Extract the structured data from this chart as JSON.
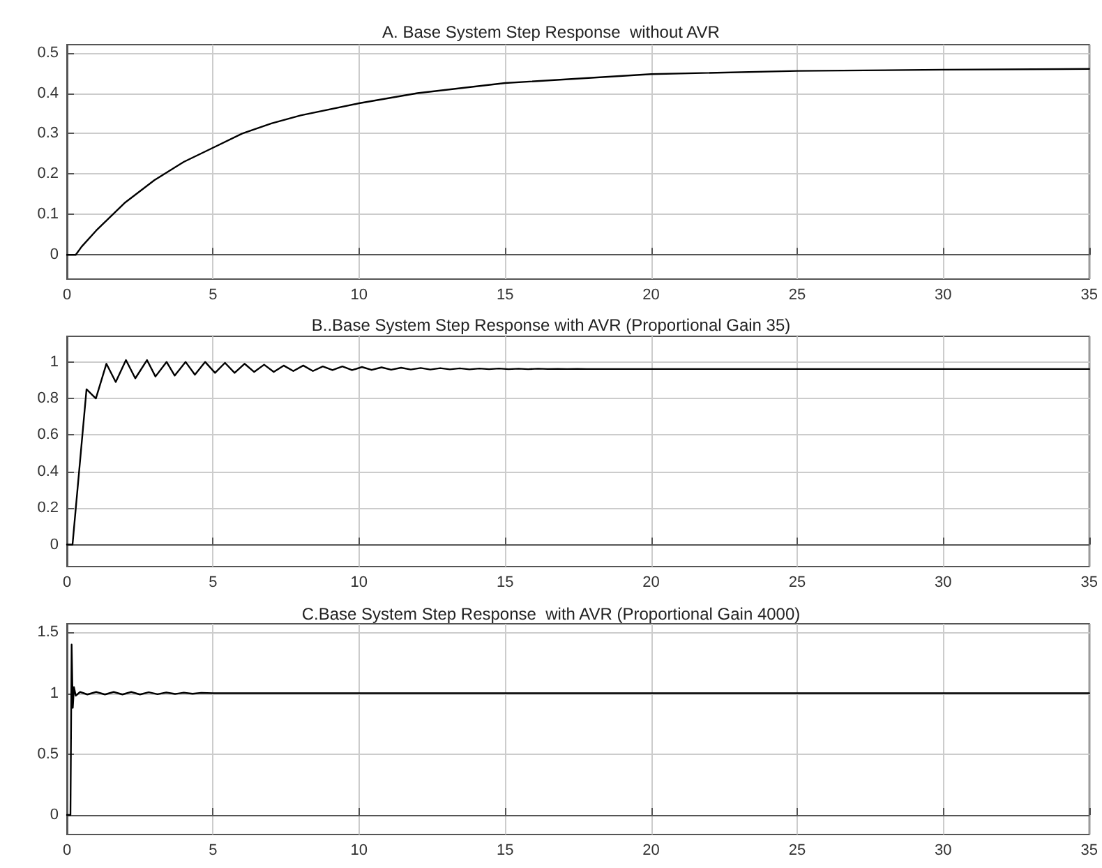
{
  "chart_data": [
    {
      "type": "line",
      "title": "A. Base System Step Response  without AVR",
      "xlim": [
        0,
        35
      ],
      "xticks": [
        0,
        5,
        10,
        15,
        20,
        25,
        30,
        35
      ],
      "ylim": [
        -0.06,
        0.52
      ],
      "yticks": [
        0,
        0.1,
        0.2,
        0.3,
        0.4,
        0.5
      ],
      "grid": true,
      "marker": "none",
      "line_style": "solid",
      "series": [
        {
          "color": "#000000",
          "x": [
            0,
            0.3,
            0.5,
            1,
            1.5,
            2,
            3,
            4,
            5,
            6,
            7,
            8,
            10,
            12,
            15,
            20,
            25,
            30,
            35
          ],
          "values": [
            0,
            0,
            0.02,
            0.06,
            0.095,
            0.13,
            0.185,
            0.23,
            0.265,
            0.3,
            0.325,
            0.345,
            0.375,
            0.4,
            0.425,
            0.447,
            0.455,
            0.458,
            0.46
          ]
        }
      ]
    },
    {
      "type": "line",
      "title": "B..Base System Step Response with AVR (Proportional Gain 35)",
      "xlim": [
        0,
        35
      ],
      "xticks": [
        0,
        5,
        10,
        15,
        20,
        25,
        30,
        35
      ],
      "ylim": [
        -0.12,
        1.14
      ],
      "yticks": [
        0,
        0.2,
        0.4,
        0.6,
        0.8,
        1
      ],
      "grid": true,
      "marker": "none",
      "line_style": "solid",
      "series": [
        {
          "color": "#000000",
          "x": [
            0,
            0.19,
            0.67,
            0.99,
            1.35,
            1.67,
            2.02,
            2.34,
            2.74,
            3.03,
            3.41,
            3.69,
            4.06,
            4.38,
            4.73,
            5.07,
            5.41,
            5.74,
            6.08,
            6.41,
            6.75,
            7.08,
            7.42,
            7.75,
            8.09,
            8.42,
            8.76,
            9.09,
            9.43,
            9.76,
            10.1,
            10.43,
            10.77,
            11.1,
            11.44,
            11.77,
            12.11,
            12.44,
            12.78,
            13.11,
            13.45,
            13.78,
            14.12,
            14.45,
            14.79,
            15.12,
            15.46,
            15.79,
            16.13,
            16.46,
            16.8,
            17.13,
            17.47,
            17.8,
            20,
            35
          ],
          "values": [
            0,
            0,
            0.85,
            0.8,
            0.99,
            0.89,
            1.01,
            0.91,
            1.01,
            0.92,
            1.0,
            0.925,
            1.0,
            0.93,
            1.0,
            0.94,
            0.995,
            0.94,
            0.99,
            0.945,
            0.985,
            0.945,
            0.98,
            0.95,
            0.98,
            0.95,
            0.975,
            0.955,
            0.975,
            0.955,
            0.972,
            0.956,
            0.97,
            0.957,
            0.968,
            0.958,
            0.967,
            0.958,
            0.966,
            0.959,
            0.965,
            0.959,
            0.964,
            0.96,
            0.964,
            0.96,
            0.963,
            0.96,
            0.963,
            0.961,
            0.962,
            0.961,
            0.962,
            0.961,
            0.961,
            0.961
          ]
        }
      ]
    },
    {
      "type": "line",
      "title": "C.Base System Step Response  with AVR (Proportional Gain 4000)",
      "xlim": [
        0,
        35
      ],
      "xticks": [
        0,
        5,
        10,
        15,
        20,
        25,
        30,
        35
      ],
      "ylim": [
        -0.16,
        1.57
      ],
      "yticks": [
        0,
        0.5,
        1,
        1.5
      ],
      "grid": true,
      "marker": "none",
      "line_style": "solid",
      "series": [
        {
          "color": "#000000",
          "x": [
            0,
            0.12,
            0.16,
            0.2,
            0.24,
            0.3,
            0.45,
            0.7,
            1,
            1.3,
            1.6,
            1.9,
            2.2,
            2.5,
            2.8,
            3.1,
            3.4,
            3.7,
            4,
            4.3,
            4.6,
            5,
            35
          ],
          "values": [
            0,
            0,
            1.4,
            0.88,
            1.05,
            0.98,
            1.01,
            0.99,
            1.01,
            0.99,
            1.01,
            0.99,
            1.01,
            0.99,
            1.008,
            0.992,
            1.006,
            0.994,
            1.004,
            0.996,
            1.003,
            1,
            1
          ]
        }
      ]
    }
  ]
}
